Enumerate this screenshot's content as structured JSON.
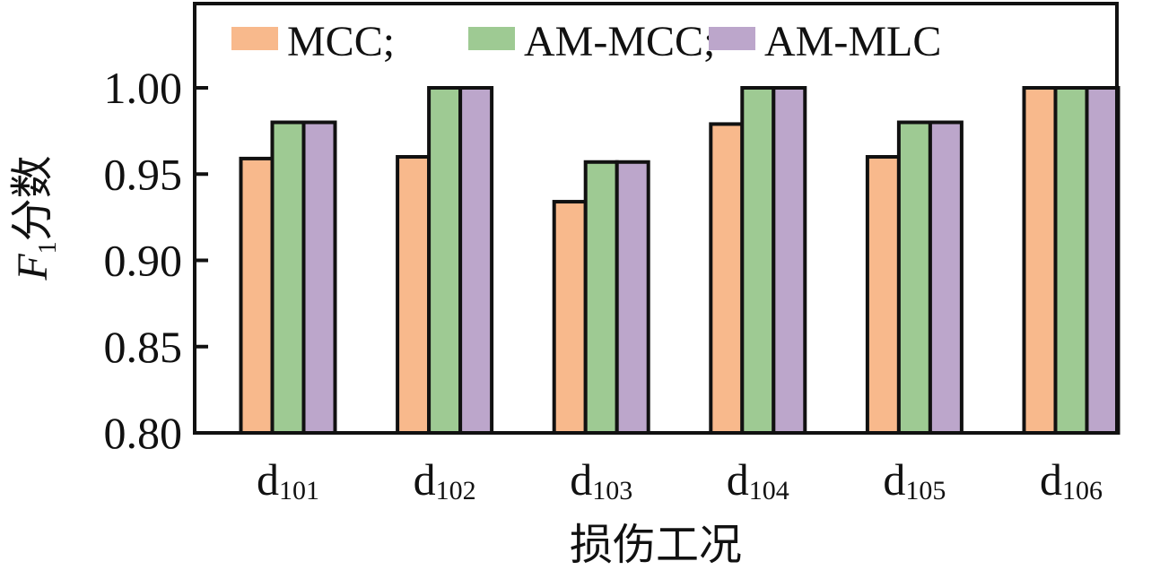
{
  "chart_data": {
    "type": "bar",
    "title": "",
    "xlabel": "损伤工况",
    "ylabel_main": "F",
    "ylabel_sub": "1",
    "ylabel_suffix": "分数",
    "categories": [
      {
        "base": "d",
        "sub": "101"
      },
      {
        "base": "d",
        "sub": "102"
      },
      {
        "base": "d",
        "sub": "103"
      },
      {
        "base": "d",
        "sub": "104"
      },
      {
        "base": "d",
        "sub": "105"
      },
      {
        "base": "d",
        "sub": "106"
      }
    ],
    "series": [
      {
        "name": "MCC;",
        "color": "#F8B98C",
        "values": [
          0.959,
          0.96,
          0.934,
          0.979,
          0.96,
          1.0
        ]
      },
      {
        "name": "AM-MCC;",
        "color": "#9ECA93",
        "values": [
          0.98,
          1.0,
          0.957,
          1.0,
          0.98,
          1.0
        ]
      },
      {
        "name": "AM-MLC",
        "color": "#BCA6CB",
        "values": [
          0.98,
          1.0,
          0.957,
          1.0,
          0.98,
          1.0
        ]
      }
    ],
    "ylim": [
      0.8,
      1.045
    ],
    "yticks": [
      "0.80",
      "0.85",
      "0.90",
      "0.95",
      "1.00"
    ],
    "grid": false,
    "legend_position": "top"
  }
}
